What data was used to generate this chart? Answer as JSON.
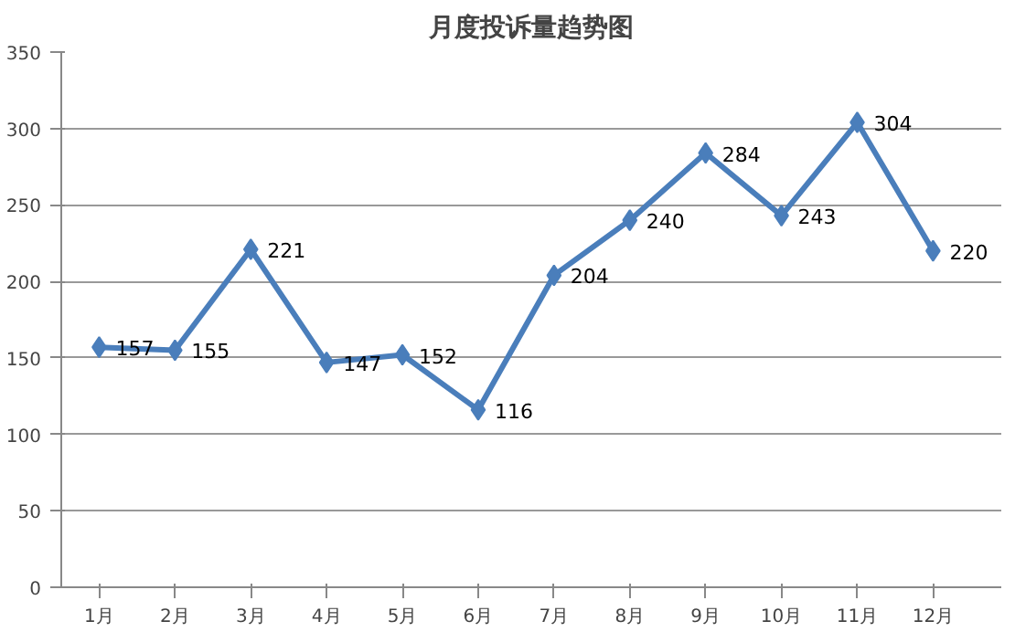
{
  "chart_data": {
    "type": "line",
    "title": "月度投诉量趋势图",
    "categories": [
      "1月",
      "2月",
      "3月",
      "4月",
      "5月",
      "6月",
      "7月",
      "8月",
      "9月",
      "10月",
      "11月",
      "12月"
    ],
    "series": [
      {
        "color": "#4a7ebb",
        "values": [
          157,
          155,
          221,
          147,
          152,
          116,
          204,
          240,
          284,
          243,
          304,
          220
        ]
      }
    ],
    "ylim": [
      0,
      350
    ],
    "yticks": [
      0,
      50,
      100,
      150,
      200,
      250,
      300,
      350
    ],
    "grid": "y",
    "marker": "diamond",
    "line_style": "solid",
    "data_labels": true
  }
}
